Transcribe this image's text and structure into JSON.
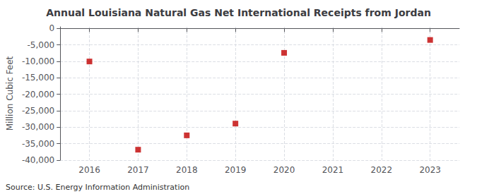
{
  "chart_data": {
    "type": "scatter",
    "title": "Annual Louisiana Natural Gas Net International Receipts from Jordan",
    "ylabel": "Million Cubic Feet",
    "annotation": "Source: U.S. Energy Information Administration",
    "x": [
      2016,
      2017,
      2018,
      2019,
      2020,
      2023
    ],
    "values": [
      -10034,
      -36826,
      -32472,
      -28897,
      -7408,
      -3496
    ],
    "color": "#c00000",
    "marker": "square",
    "xlim": [
      2015.4,
      2023.6
    ],
    "ylim": [
      -40000,
      500
    ],
    "xticks": [
      2016,
      2017,
      2018,
      2019,
      2020,
      2021,
      2022,
      2023
    ],
    "yticks": [
      0,
      {
        "value": -5000,
        "label": "-5,000"
      },
      {
        "value": -10000,
        "label": "-10,000"
      },
      {
        "value": -15000,
        "label": "-15,000"
      },
      {
        "value": -20000,
        "label": "-20,000"
      },
      {
        "value": -25000,
        "label": "-25,000"
      },
      {
        "value": -30000,
        "label": "-30,000"
      },
      {
        "value": -35000,
        "label": "-35,000"
      },
      {
        "value": -40000,
        "label": "-40,000"
      }
    ],
    "grid": true
  }
}
